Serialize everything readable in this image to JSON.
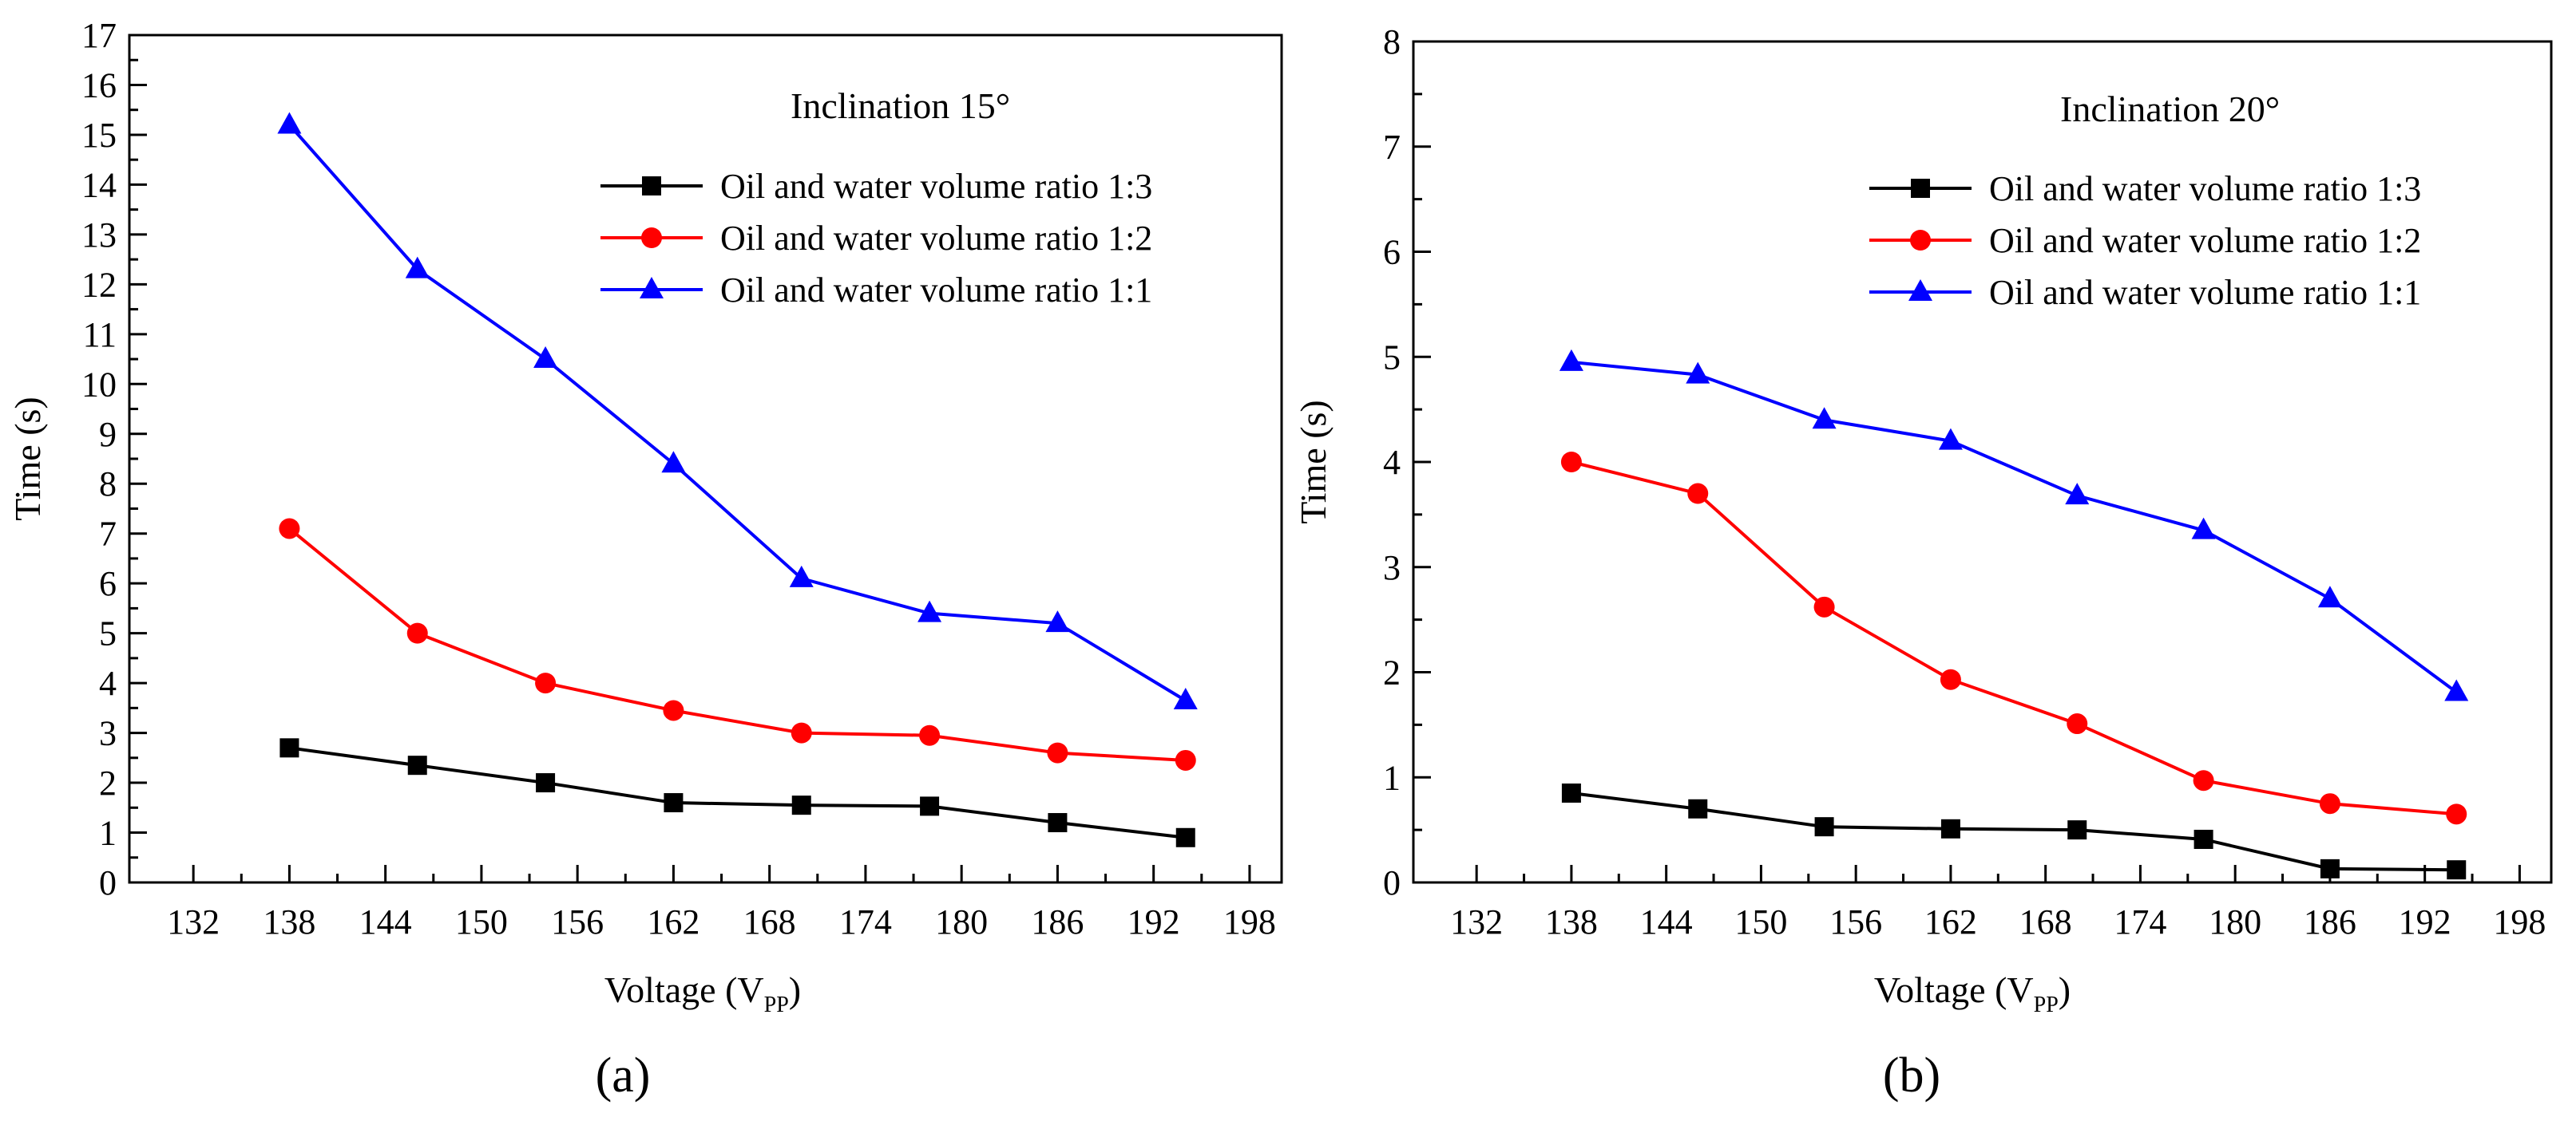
{
  "chart_data": [
    {
      "type": "line",
      "panel_label": "(a)",
      "annotation": "Inclination 15°",
      "xlabel": "Voltage (V",
      "xlabel_sub": "PP",
      "xlabel_close": ")",
      "ylabel": "Time (s)",
      "xlim": [
        128,
        200
      ],
      "ylim": [
        0,
        17
      ],
      "x_ticks": [
        132,
        138,
        144,
        150,
        156,
        162,
        168,
        174,
        180,
        186,
        192,
        198
      ],
      "y_ticks": [
        0,
        1,
        2,
        3,
        4,
        5,
        6,
        7,
        8,
        9,
        10,
        11,
        12,
        13,
        14,
        15,
        16,
        17
      ],
      "legend_position": "top-right",
      "x": [
        138,
        146,
        154,
        162,
        170,
        178,
        186,
        194
      ],
      "series": [
        {
          "name": "Oil and water volume ratio 1:3",
          "color": "#000000",
          "marker": "square",
          "values": [
            2.7,
            2.35,
            2.0,
            1.6,
            1.55,
            1.53,
            1.2,
            0.9
          ]
        },
        {
          "name": "Oil and water volume ratio 1:2",
          "color": "#ff0000",
          "marker": "circle",
          "values": [
            7.1,
            5.0,
            4.0,
            3.45,
            3.0,
            2.95,
            2.6,
            2.45
          ]
        },
        {
          "name": "Oil and water volume ratio 1:1",
          "color": "#0000ff",
          "marker": "triangle",
          "values": [
            15.2,
            12.3,
            10.5,
            8.4,
            6.1,
            5.4,
            5.2,
            3.65
          ]
        }
      ]
    },
    {
      "type": "line",
      "panel_label": "(b)",
      "annotation": "Inclination 20°",
      "xlabel": "Voltage (V",
      "xlabel_sub": "PP",
      "xlabel_close": ")",
      "ylabel": "Time (s)",
      "xlim": [
        128,
        200
      ],
      "ylim": [
        0,
        8
      ],
      "x_ticks": [
        132,
        138,
        144,
        150,
        156,
        162,
        168,
        174,
        180,
        186,
        192,
        198
      ],
      "y_ticks": [
        0,
        1,
        2,
        3,
        4,
        5,
        6,
        7,
        8
      ],
      "legend_position": "top-right",
      "x": [
        138,
        146,
        154,
        162,
        170,
        178,
        186,
        194
      ],
      "series": [
        {
          "name": "Oil and water volume ratio 1:3",
          "color": "#000000",
          "marker": "square",
          "values": [
            0.85,
            0.7,
            0.53,
            0.51,
            0.5,
            0.41,
            0.13,
            0.12
          ]
        },
        {
          "name": "Oil and water volume ratio 1:2",
          "color": "#ff0000",
          "marker": "circle",
          "values": [
            4.0,
            3.7,
            2.62,
            1.93,
            1.51,
            0.97,
            0.75,
            0.65
          ]
        },
        {
          "name": "Oil and water volume ratio 1:1",
          "color": "#0000ff",
          "marker": "triangle",
          "values": [
            4.95,
            4.83,
            4.4,
            4.2,
            3.68,
            3.35,
            2.7,
            1.81
          ]
        }
      ]
    }
  ]
}
